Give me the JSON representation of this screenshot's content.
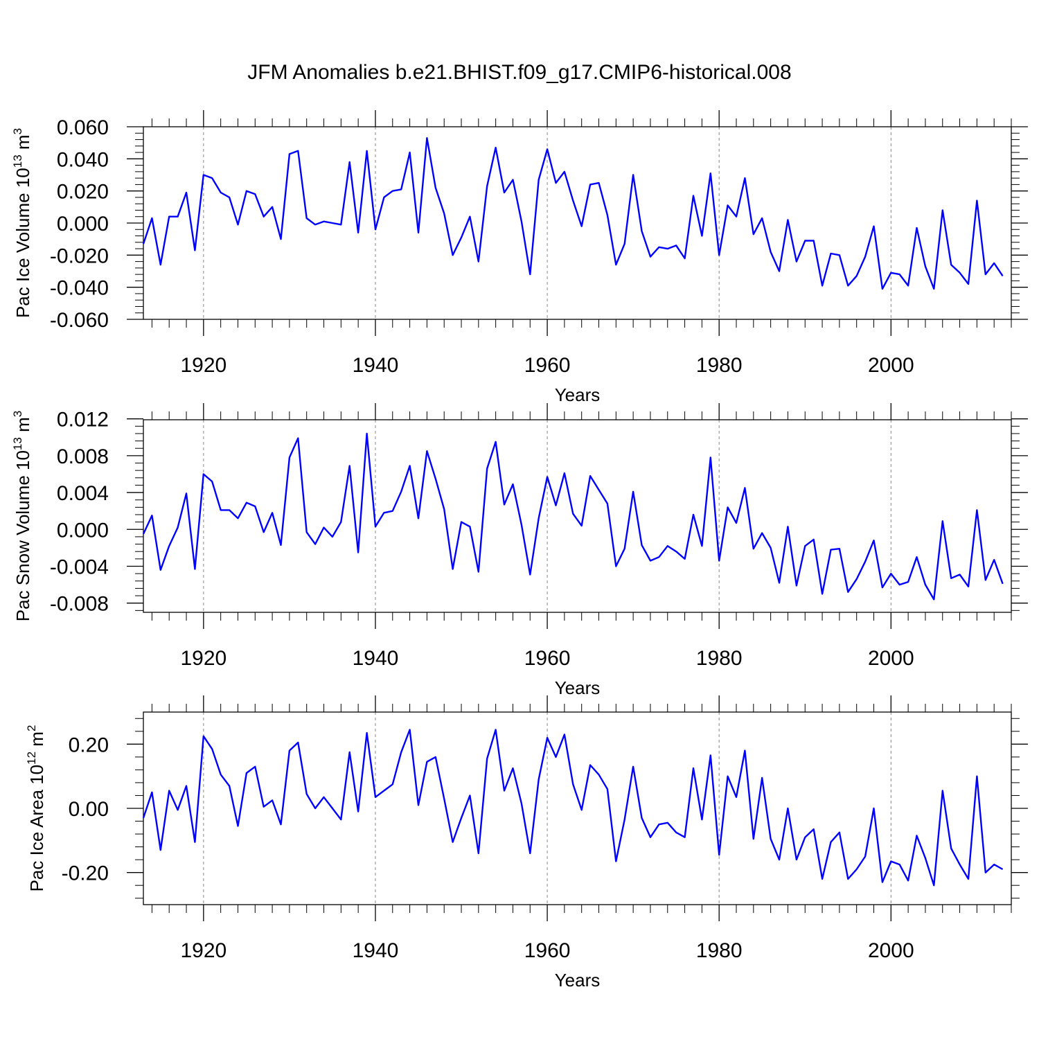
{
  "title": "JFM Anomalies b.e21.BHIST.f09_g17.CMIP6-historical.008",
  "colors": {
    "line": "#0000ff",
    "axis": "#000000",
    "grid": "#888888"
  },
  "chart_data": [
    {
      "type": "line",
      "ylabel_main": "Pac Ice Volume 10",
      "ylabel_exp": "13",
      "ylabel_unit": " m",
      "ylabel_unit_exp": "3",
      "xlabel": "Years",
      "xlim": [
        1913,
        2014
      ],
      "ylim": [
        -0.06,
        0.06
      ],
      "yticks": [
        -0.06,
        -0.04,
        -0.02,
        0.0,
        0.02,
        0.04,
        0.06
      ],
      "yticklabels": [
        "-0.060",
        "-0.040",
        "-0.020",
        "0.000",
        "0.020",
        "0.040",
        "0.060"
      ],
      "xticks": [
        1920,
        1940,
        1960,
        1980,
        2000
      ],
      "xticklabels": [
        "1920",
        "1940",
        "1960",
        "1980",
        "2000"
      ],
      "x_start": 1913,
      "values": [
        -0.013,
        0.003,
        -0.026,
        0.004,
        0.004,
        0.019,
        -0.017,
        0.03,
        0.028,
        0.019,
        0.016,
        -0.001,
        0.02,
        0.018,
        0.004,
        0.01,
        -0.01,
        0.043,
        0.045,
        0.003,
        -0.001,
        0.001,
        0.0,
        -0.001,
        0.038,
        -0.006,
        0.045,
        -0.004,
        0.016,
        0.02,
        0.021,
        0.044,
        -0.006,
        0.053,
        0.022,
        0.006,
        -0.02,
        -0.009,
        0.004,
        -0.024,
        0.023,
        0.047,
        0.019,
        0.027,
        0.001,
        -0.032,
        0.027,
        0.046,
        0.025,
        0.032,
        0.014,
        -0.002,
        0.024,
        0.025,
        0.005,
        -0.026,
        -0.013,
        0.03,
        -0.005,
        -0.021,
        -0.015,
        -0.016,
        -0.014,
        -0.022,
        0.017,
        -0.008,
        0.031,
        -0.02,
        0.011,
        0.004,
        0.028,
        -0.007,
        0.003,
        -0.018,
        -0.03,
        0.002,
        -0.024,
        -0.011,
        -0.011,
        -0.039,
        -0.019,
        -0.02,
        -0.039,
        -0.033,
        -0.021,
        -0.002,
        -0.041,
        -0.031,
        -0.032,
        -0.039,
        -0.003,
        -0.027,
        -0.041,
        0.008,
        -0.026,
        -0.031,
        -0.038,
        0.014,
        -0.032,
        -0.025,
        -0.033
      ]
    },
    {
      "type": "line",
      "ylabel_main": "Pac Snow Volume 10",
      "ylabel_exp": "13",
      "ylabel_unit": " m",
      "ylabel_unit_exp": "3",
      "xlabel": "Years",
      "xlim": [
        1913,
        2014
      ],
      "ylim": [
        -0.009,
        0.0119
      ],
      "yticks": [
        -0.008,
        -0.004,
        0.0,
        0.004,
        0.008,
        0.012
      ],
      "yticklabels": [
        "-0.008",
        "-0.004",
        "0.000",
        "0.004",
        "0.008",
        "0.012"
      ],
      "xticks": [
        1920,
        1940,
        1960,
        1980,
        2000
      ],
      "xticklabels": [
        "1920",
        "1940",
        "1960",
        "1980",
        "2000"
      ],
      "x_start": 1913,
      "values": [
        -0.0005,
        0.0015,
        -0.0044,
        -0.0018,
        0.0002,
        0.0039,
        -0.0043,
        0.006,
        0.0052,
        0.0021,
        0.0021,
        0.0012,
        0.0029,
        0.0025,
        -0.0003,
        0.0018,
        -0.0017,
        0.0078,
        0.0099,
        -0.0003,
        -0.0016,
        0.0002,
        -0.0008,
        0.0008,
        0.0069,
        -0.0025,
        0.0104,
        0.0003,
        0.0018,
        0.002,
        0.0041,
        0.0069,
        0.0012,
        0.0085,
        0.0055,
        0.0022,
        -0.0043,
        0.0008,
        0.0003,
        -0.0046,
        0.0066,
        0.0095,
        0.0027,
        0.0049,
        0.0005,
        -0.0049,
        0.0012,
        0.0057,
        0.0026,
        0.0061,
        0.0017,
        0.0004,
        0.0058,
        0.0043,
        0.0028,
        -0.004,
        -0.0021,
        0.0041,
        -0.0017,
        -0.0034,
        -0.003,
        -0.0018,
        -0.0024,
        -0.0032,
        0.0016,
        -0.0018,
        0.0078,
        -0.0034,
        0.0024,
        0.0007,
        0.0045,
        -0.0021,
        -0.0004,
        -0.002,
        -0.0058,
        0.0003,
        -0.0061,
        -0.0018,
        -0.0011,
        -0.007,
        -0.0022,
        -0.0021,
        -0.0068,
        -0.0054,
        -0.0035,
        -0.0012,
        -0.0063,
        -0.0048,
        -0.006,
        -0.0057,
        -0.003,
        -0.006,
        -0.0076,
        0.0009,
        -0.0053,
        -0.0049,
        -0.0062,
        0.0021,
        -0.0055,
        -0.0033,
        -0.0059
      ]
    },
    {
      "type": "line",
      "ylabel_main": "Pac Ice Area 10",
      "ylabel_exp": "12",
      "ylabel_unit": " m",
      "ylabel_unit_exp": "2",
      "xlabel": "Years",
      "xlim": [
        1913,
        2014
      ],
      "ylim": [
        -0.3,
        0.3
      ],
      "yticks": [
        -0.2,
        0.0,
        0.2
      ],
      "yticklabels": [
        "-0.20",
        "0.00",
        "0.20"
      ],
      "xticks": [
        1920,
        1940,
        1960,
        1980,
        2000
      ],
      "xticklabels": [
        "1920",
        "1940",
        "1960",
        "1980",
        "2000"
      ],
      "x_start": 1913,
      "values": [
        -0.03,
        0.05,
        -0.13,
        0.055,
        -0.005,
        0.07,
        -0.105,
        0.225,
        0.185,
        0.105,
        0.07,
        -0.055,
        0.11,
        0.13,
        0.005,
        0.025,
        -0.05,
        0.18,
        0.205,
        0.045,
        0.0,
        0.035,
        0.0,
        -0.035,
        0.175,
        -0.01,
        0.235,
        0.035,
        0.055,
        0.075,
        0.175,
        0.245,
        0.01,
        0.145,
        0.16,
        0.03,
        -0.105,
        -0.03,
        0.04,
        -0.14,
        0.155,
        0.245,
        0.055,
        0.125,
        0.015,
        -0.14,
        0.09,
        0.22,
        0.16,
        0.23,
        0.075,
        -0.005,
        0.135,
        0.105,
        0.06,
        -0.165,
        -0.035,
        0.13,
        -0.03,
        -0.09,
        -0.05,
        -0.045,
        -0.075,
        -0.09,
        0.125,
        -0.035,
        0.165,
        -0.145,
        0.1,
        0.035,
        0.18,
        -0.095,
        0.095,
        -0.095,
        -0.16,
        0.0,
        -0.16,
        -0.09,
        -0.065,
        -0.22,
        -0.105,
        -0.075,
        -0.22,
        -0.19,
        -0.15,
        0.0,
        -0.23,
        -0.165,
        -0.175,
        -0.225,
        -0.085,
        -0.155,
        -0.24,
        0.055,
        -0.125,
        -0.175,
        -0.22,
        0.1,
        -0.2,
        -0.175,
        -0.19
      ]
    }
  ]
}
